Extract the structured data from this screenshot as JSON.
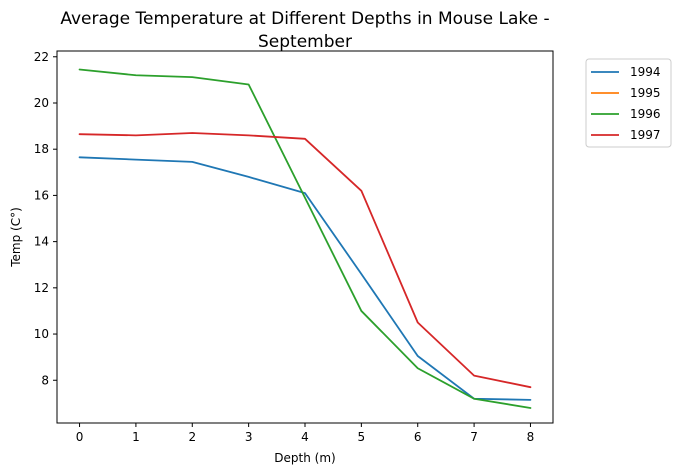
{
  "chart_data": {
    "type": "line",
    "title_line1": "Average Temperature at Different Depths in Mouse Lake -",
    "title_line2": "September",
    "xlabel": "Depth (m)",
    "ylabel": "Temp (C°)",
    "xlim": [
      -0.4,
      8.4
    ],
    "ylim": [
      6.15,
      22.25
    ],
    "xticks": [
      0,
      1,
      2,
      3,
      4,
      5,
      6,
      7,
      8
    ],
    "yticks": [
      8,
      10,
      12,
      14,
      16,
      18,
      20,
      22
    ],
    "grid": false,
    "legend_position": "outside-top-right",
    "series": [
      {
        "name": "1994",
        "color": "#1f77b4",
        "x": [
          0,
          1,
          2,
          3,
          4,
          5,
          6,
          7,
          8
        ],
        "y": [
          17.65,
          17.55,
          17.45,
          16.8,
          16.1,
          12.6,
          9.05,
          7.2,
          7.15
        ]
      },
      {
        "name": "1995",
        "color": "#ff7f0e",
        "x": [],
        "y": []
      },
      {
        "name": "1996",
        "color": "#2ca02c",
        "x": [
          0,
          1,
          2,
          3,
          4,
          5,
          6,
          7,
          8
        ],
        "y": [
          21.45,
          21.2,
          21.12,
          20.8,
          15.9,
          11.0,
          8.52,
          7.2,
          6.8
        ]
      },
      {
        "name": "1997",
        "color": "#d62728",
        "x": [
          0,
          1,
          2,
          3,
          4,
          5,
          6,
          7,
          8
        ],
        "y": [
          18.65,
          18.6,
          18.7,
          18.6,
          18.45,
          16.2,
          10.5,
          8.2,
          7.7
        ]
      }
    ]
  }
}
